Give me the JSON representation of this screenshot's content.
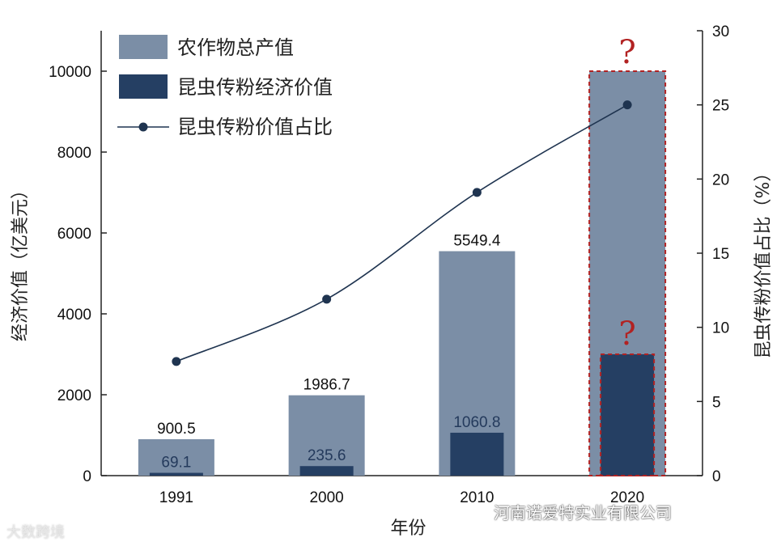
{
  "chart_data": {
    "type": "bar",
    "categories": [
      "1991",
      "2000",
      "2010",
      "2020"
    ],
    "xlabel": "年份",
    "ylabel": "经济价值（亿美元）",
    "ylabel_right": "昆虫传粉价值占比（%）",
    "ylim": [
      0,
      11000
    ],
    "ylim_right": [
      0,
      30
    ],
    "yticks": [
      0,
      2000,
      4000,
      6000,
      8000,
      10000
    ],
    "yticks_right": [
      0,
      5,
      10,
      15,
      20,
      25,
      30
    ],
    "legend_position": "top-left",
    "series": [
      {
        "name": "农作物总产值",
        "kind": "bar",
        "color": "#7b8ea6",
        "values": [
          900.5,
          1986.7,
          5549.4,
          10000
        ],
        "labels": [
          "900.5",
          "1986.7",
          "5549.4",
          ""
        ]
      },
      {
        "name": "昆虫传粉经济价值",
        "kind": "bar",
        "color": "#253f63",
        "values": [
          69.1,
          235.6,
          1060.8,
          3000
        ],
        "labels": [
          "69.1",
          "235.6",
          "1060.8",
          ""
        ]
      },
      {
        "name": "昆虫传粉价值占比",
        "kind": "line",
        "axis": "right",
        "color": "#1f3450",
        "values": [
          7.7,
          11.9,
          19.1,
          25
        ]
      }
    ],
    "annotations": [
      "?",
      "?"
    ],
    "annotation_color": "#b22222"
  },
  "watermark": {
    "left": "大数跨境",
    "right": "河南诺爱特实业有限公司"
  }
}
